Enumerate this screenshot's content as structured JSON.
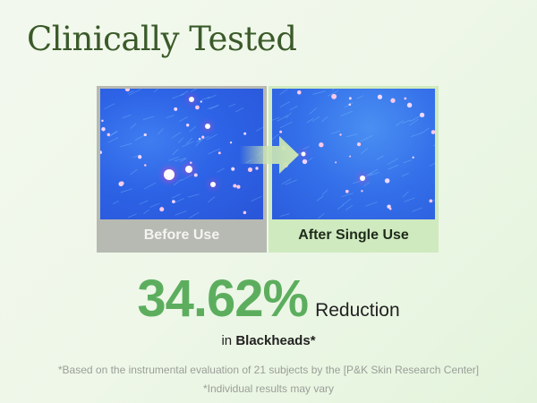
{
  "title": "Clinically Tested",
  "comparison": {
    "before_label": "Before Use",
    "after_label": "After Single Use",
    "arrow_icon": "arrow-right-icon"
  },
  "result": {
    "value": "34.62%",
    "unit_text": "Reduction",
    "sub_prefix": "in",
    "sub_bold": "Blackheads*"
  },
  "footnotes": [
    "*Based on the instrumental evaluation of 21 subjects by the [P&K Skin Research Center]",
    "*Individual results may vary"
  ],
  "colors": {
    "accent": "#5cae5e",
    "title": "#3b5a2a",
    "before_bar": "#b7bab2",
    "after_bar": "#cfeabf"
  }
}
